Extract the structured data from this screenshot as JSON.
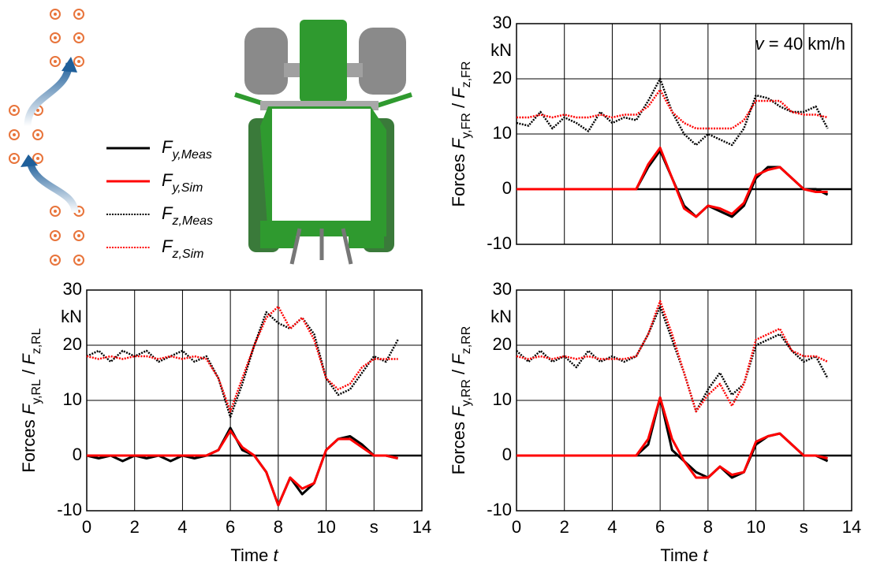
{
  "chart_data": [
    {
      "type": "line",
      "ylabel": [
        "Forces ",
        "F",
        "y,FR",
        " / ",
        "F",
        "z,FR"
      ],
      "y_unit": "kN",
      "annotation": [
        "v",
        " = 40 km/h"
      ],
      "x": [
        0,
        0.5,
        1,
        1.5,
        2,
        2.5,
        3,
        3.5,
        4,
        4.5,
        5,
        5.5,
        6,
        6.5,
        7,
        7.5,
        8,
        8.5,
        9,
        9.5,
        10,
        10.5,
        11,
        11.5,
        12,
        12.5,
        13
      ],
      "xlim": [
        0,
        14
      ],
      "xticks": [
        0,
        2,
        4,
        6,
        8,
        10,
        12,
        14
      ],
      "xtick_labels": false,
      "ylim": [
        -10,
        30
      ],
      "yticks": [
        -10,
        0,
        10,
        20,
        30
      ],
      "grid": true,
      "series": [
        {
          "name": "Fy,Meas",
          "color": "#000000",
          "style": "solid",
          "values": [
            0,
            0,
            0,
            0,
            0,
            0,
            0,
            0,
            0,
            0,
            0,
            4,
            7,
            2,
            -3,
            -5,
            -3,
            -4,
            -5,
            -3,
            2,
            4,
            4,
            2,
            0,
            0,
            -1
          ]
        },
        {
          "name": "Fy,Sim",
          "color": "#ff0000",
          "style": "solid",
          "values": [
            0,
            0,
            0,
            0,
            0,
            0,
            0,
            0,
            0,
            0,
            0,
            4.5,
            7.5,
            2,
            -3.5,
            -5,
            -3,
            -3.5,
            -4.5,
            -2.5,
            2.5,
            3.5,
            4,
            2,
            0,
            -0.5,
            -0.5
          ]
        },
        {
          "name": "Fz,Meas",
          "color": "#000000",
          "style": "dotted",
          "values": [
            12,
            11.5,
            14,
            11,
            13,
            12,
            10.5,
            14,
            12,
            13,
            12.5,
            16,
            20,
            14,
            10,
            8,
            10,
            9,
            8,
            11,
            17,
            16.5,
            15,
            14,
            14,
            15,
            11
          ]
        },
        {
          "name": "Fz,Sim",
          "color": "#ff0000",
          "style": "dotted",
          "values": [
            13,
            13,
            13.5,
            13,
            13.5,
            13,
            13,
            13.5,
            13,
            13.5,
            13.5,
            15,
            18,
            14,
            12,
            11,
            11,
            11,
            11,
            12.5,
            16,
            16,
            16,
            14,
            13.5,
            13.5,
            13
          ]
        }
      ]
    },
    {
      "type": "line",
      "ylabel": [
        "Forces ",
        "F",
        "y,RL",
        " / ",
        "F",
        "z,RL"
      ],
      "y_unit": "kN",
      "xlabel": [
        "Time ",
        "t"
      ],
      "x": [
        0,
        0.5,
        1,
        1.5,
        2,
        2.5,
        3,
        3.5,
        4,
        4.5,
        5,
        5.5,
        6,
        6.5,
        7,
        7.5,
        8,
        8.5,
        9,
        9.5,
        10,
        10.5,
        11,
        11.5,
        12,
        12.5,
        13
      ],
      "xlim": [
        0,
        14
      ],
      "xticks": [
        0,
        2,
        4,
        6,
        8,
        10,
        {
          "value": 12,
          "label": "s"
        },
        14
      ],
      "xtick_labels": true,
      "ylim": [
        -10,
        30
      ],
      "yticks": [
        -10,
        0,
        10,
        20,
        30
      ],
      "grid": true,
      "series": [
        {
          "name": "Fy,Meas",
          "color": "#000000",
          "style": "solid",
          "values": [
            0,
            -0.5,
            0,
            -1,
            0,
            -0.5,
            0,
            -1,
            0,
            -0.5,
            0,
            1,
            5,
            1,
            0,
            -3,
            -9,
            -4,
            -7,
            -5,
            1,
            3,
            3.5,
            2,
            0,
            0,
            -0.5
          ]
        },
        {
          "name": "Fy,Sim",
          "color": "#ff0000",
          "style": "solid",
          "values": [
            0,
            0,
            0,
            0,
            0,
            0,
            0,
            0,
            0,
            0,
            0,
            1,
            4.5,
            1.5,
            0,
            -3,
            -9,
            -4,
            -6,
            -5,
            1,
            3,
            3,
            1.5,
            0,
            0,
            -0.5
          ]
        },
        {
          "name": "Fz,Meas",
          "color": "#000000",
          "style": "dotted",
          "values": [
            18,
            19,
            17,
            19,
            18,
            19,
            17,
            18,
            19,
            17,
            18,
            14,
            7,
            13,
            20,
            26,
            24,
            23,
            25,
            22,
            14,
            11,
            12,
            15,
            18,
            17,
            21
          ]
        },
        {
          "name": "Fz,Sim",
          "color": "#ff0000",
          "style": "dotted",
          "values": [
            18,
            17.5,
            18,
            17.5,
            18,
            18,
            17.5,
            18,
            17.5,
            18,
            17.5,
            14,
            8,
            14,
            20,
            25,
            27,
            23,
            25,
            21,
            14,
            12,
            13,
            16,
            17.5,
            17.5,
            17.5
          ]
        }
      ]
    },
    {
      "type": "line",
      "ylabel": [
        "Forces ",
        "F",
        "y,RR",
        " / ",
        "F",
        "z,RR"
      ],
      "y_unit": "kN",
      "xlabel": [
        "Time ",
        "t"
      ],
      "x": [
        0,
        0.5,
        1,
        1.5,
        2,
        2.5,
        3,
        3.5,
        4,
        4.5,
        5,
        5.5,
        6,
        6.5,
        7,
        7.5,
        8,
        8.5,
        9,
        9.5,
        10,
        10.5,
        11,
        11.5,
        12,
        12.5,
        13
      ],
      "xlim": [
        0,
        14
      ],
      "xticks": [
        0,
        2,
        4,
        6,
        8,
        10,
        {
          "value": 12,
          "label": "s"
        },
        14
      ],
      "xtick_labels": true,
      "ylim": [
        -10,
        30
      ],
      "yticks": [
        -10,
        0,
        10,
        20,
        30
      ],
      "grid": true,
      "series": [
        {
          "name": "Fy,Meas",
          "color": "#000000",
          "style": "solid",
          "values": [
            0,
            0,
            0,
            0,
            0,
            0,
            0,
            0,
            0,
            0,
            0,
            2,
            10.5,
            1,
            -1,
            -3,
            -4,
            -2,
            -4,
            -3,
            2,
            3.5,
            4,
            2,
            0,
            0,
            -1
          ]
        },
        {
          "name": "Fy,Sim",
          "color": "#ff0000",
          "style": "solid",
          "values": [
            0,
            0,
            0,
            0,
            0,
            0,
            0,
            0,
            0,
            0,
            0,
            3,
            10.5,
            3,
            -1,
            -4,
            -4,
            -2,
            -3.5,
            -3,
            2.5,
            3.5,
            4,
            2,
            0,
            0,
            -0.5
          ]
        },
        {
          "name": "Fz,Meas",
          "color": "#000000",
          "style": "dotted",
          "values": [
            19,
            17,
            19,
            17,
            18,
            16,
            19,
            17,
            18,
            17,
            18,
            22,
            27,
            21,
            15,
            8,
            12,
            15,
            11,
            13,
            20,
            21,
            22,
            19,
            17,
            18,
            14
          ]
        },
        {
          "name": "Fz,Sim",
          "color": "#ff0000",
          "style": "dotted",
          "values": [
            18,
            17.5,
            18,
            17.5,
            18,
            17.5,
            18,
            17.5,
            17.5,
            17.5,
            18,
            22,
            28,
            22,
            15,
            8,
            11,
            13,
            9,
            13,
            21,
            22,
            23,
            19,
            18,
            18,
            17
          ]
        }
      ]
    }
  ]
}
